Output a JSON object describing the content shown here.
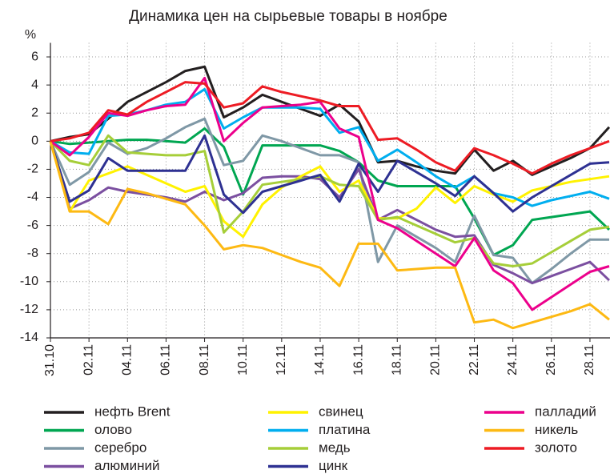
{
  "chart_data": {
    "type": "line",
    "title": "Динамика цен на сырьевые товары в ноябре",
    "y_label": "%",
    "categories": [
      "31.10",
      null,
      "02.11",
      null,
      "04.11",
      null,
      "06.11",
      null,
      "08.11",
      null,
      "10.11",
      null,
      "12.11",
      null,
      "14.11",
      null,
      "16.11",
      null,
      "18.11",
      null,
      "20.11",
      null,
      "22.11",
      null,
      "24.11",
      null,
      "26.11",
      null,
      "28.11",
      null
    ],
    "ylim": [
      -14,
      7
    ],
    "yticks": [
      6,
      4,
      2,
      0,
      -2,
      -4,
      -6,
      -8,
      -10,
      -12,
      -14
    ],
    "grid": true,
    "series": [
      {
        "name": "нефть Brent",
        "color": "#231f20",
        "values": [
          0,
          0.3,
          0.5,
          1.6,
          2.8,
          3.5,
          4.2,
          5.0,
          5.3,
          1.7,
          2.4,
          3.3,
          2.8,
          2.3,
          1.8,
          2.6,
          1.4,
          -1.5,
          -1.4,
          -1.8,
          -2.1,
          -2.3,
          -0.6,
          -2.1,
          -1.4,
          -2.4,
          -1.8,
          -1.2,
          -0.5,
          1.0
        ]
      },
      {
        "name": "олово",
        "color": "#00a651",
        "values": [
          0,
          -0.2,
          -0.1,
          0.0,
          0.1,
          0.1,
          0.0,
          -0.1,
          0.9,
          -0.4,
          -3.8,
          -0.3,
          -0.3,
          -0.3,
          -0.3,
          -0.7,
          -1.5,
          -2.8,
          -3.2,
          -3.2,
          -3.2,
          -3.2,
          -5.5,
          -8.1,
          -7.4,
          -5.6,
          -5.4,
          -5.2,
          -5.0,
          -6.3
        ]
      },
      {
        "name": "серебро",
        "color": "#7f98a6",
        "values": [
          0,
          -3.1,
          -2.2,
          -0.1,
          -0.9,
          -0.5,
          0.2,
          1.0,
          1.6,
          -1.7,
          -1.4,
          0.4,
          0.0,
          -0.5,
          -1.0,
          -1.0,
          -1.5,
          -8.6,
          -6.0,
          -6.8,
          -7.6,
          -8.6,
          -5.3,
          -8.1,
          -8.3,
          -10.1,
          -9.1,
          -8.0,
          -7.0,
          -7.0
        ]
      },
      {
        "name": "алюминий",
        "color": "#7b4fa0",
        "values": [
          0,
          -4.8,
          -4.2,
          -3.3,
          -3.6,
          -3.8,
          -4.0,
          -4.3,
          -3.6,
          -4.2,
          -3.7,
          -2.6,
          -2.5,
          -2.5,
          -2.7,
          -4.0,
          -2.0,
          -5.6,
          -4.9,
          -5.6,
          -6.3,
          -6.8,
          -6.7,
          -8.8,
          -9.4,
          -10.1,
          -9.6,
          -9.1,
          -8.6,
          -9.9
        ]
      },
      {
        "name": "свинец",
        "color": "#fff200",
        "values": [
          0,
          -5.0,
          -2.8,
          -2.3,
          -1.8,
          -2.4,
          -3.0,
          -3.6,
          -3.2,
          -5.7,
          -6.8,
          -4.5,
          -3.3,
          -2.5,
          -1.8,
          -3.6,
          -2.8,
          -5.5,
          -5.5,
          -4.8,
          -3.3,
          -4.4,
          -3.2,
          -3.8,
          -4.3,
          -3.5,
          -3.2,
          -2.9,
          -2.7,
          -2.5
        ]
      },
      {
        "name": "платина",
        "color": "#00aeef",
        "values": [
          0,
          -0.8,
          -0.9,
          1.8,
          1.9,
          2.2,
          2.6,
          2.8,
          3.7,
          0.9,
          1.7,
          2.4,
          2.4,
          2.4,
          2.3,
          0.6,
          1.0,
          -1.4,
          -0.6,
          -1.5,
          -2.5,
          -3.3,
          -2.5,
          -3.7,
          -4.0,
          -4.6,
          -4.2,
          -3.9,
          -3.6,
          -4.1
        ]
      },
      {
        "name": "медь",
        "color": "#a6ce39",
        "values": [
          0,
          -1.4,
          -1.7,
          0.4,
          -0.8,
          -0.9,
          -1.0,
          -1.0,
          -0.7,
          -6.5,
          -5.0,
          -3.1,
          -2.9,
          -2.7,
          -2.5,
          -3.1,
          -3.2,
          -5.6,
          -5.4,
          -6.0,
          -6.6,
          -7.2,
          -6.9,
          -8.7,
          -8.9,
          -8.7,
          -7.9,
          -7.1,
          -6.3,
          -6.1
        ]
      },
      {
        "name": "цинк",
        "color": "#2e3192",
        "values": [
          0,
          -4.3,
          -3.5,
          -1.2,
          -2.1,
          -2.1,
          -2.1,
          -2.1,
          0.4,
          -3.8,
          -5.1,
          -3.6,
          -3.2,
          -2.8,
          -2.4,
          -4.3,
          -1.6,
          -3.6,
          -1.4,
          -2.2,
          -3.0,
          -3.9,
          -2.5,
          -3.7,
          -5.0,
          -4.0,
          -3.2,
          -2.4,
          -1.6,
          -1.5
        ]
      },
      {
        "name": "палладий",
        "color": "#ec008c",
        "values": [
          0,
          -1.0,
          0.3,
          2.0,
          1.8,
          2.2,
          2.5,
          2.6,
          4.5,
          0.0,
          1.3,
          2.4,
          2.5,
          2.6,
          2.8,
          0.9,
          0.3,
          -5.6,
          -6.2,
          -7.1,
          -8.0,
          -8.9,
          -6.9,
          -9.2,
          -10.1,
          -12.0,
          -11.1,
          -10.2,
          -9.3,
          -8.9
        ]
      },
      {
        "name": "никель",
        "color": "#fdb913",
        "values": [
          0,
          -5.0,
          -5.0,
          -5.9,
          -3.4,
          -3.7,
          -4.1,
          -4.5,
          -6.0,
          -7.7,
          -7.4,
          -7.6,
          -8.1,
          -8.6,
          -9.0,
          -10.3,
          -7.3,
          -7.3,
          -9.2,
          -9.1,
          -9.0,
          -9.0,
          -12.9,
          -12.7,
          -13.3,
          -12.9,
          -12.5,
          -12.1,
          -11.6,
          -12.7
        ]
      },
      {
        "name": "золото",
        "color": "#ed1c24",
        "values": [
          0,
          0.2,
          0.6,
          2.2,
          1.9,
          2.8,
          3.5,
          4.2,
          4.1,
          2.4,
          2.7,
          3.9,
          3.5,
          3.2,
          2.9,
          2.5,
          2.5,
          0.1,
          0.2,
          -0.6,
          -1.5,
          -2.1,
          -0.5,
          -1.0,
          -1.6,
          -2.3,
          -1.6,
          -1.0,
          -0.5,
          0.0
        ]
      }
    ]
  }
}
